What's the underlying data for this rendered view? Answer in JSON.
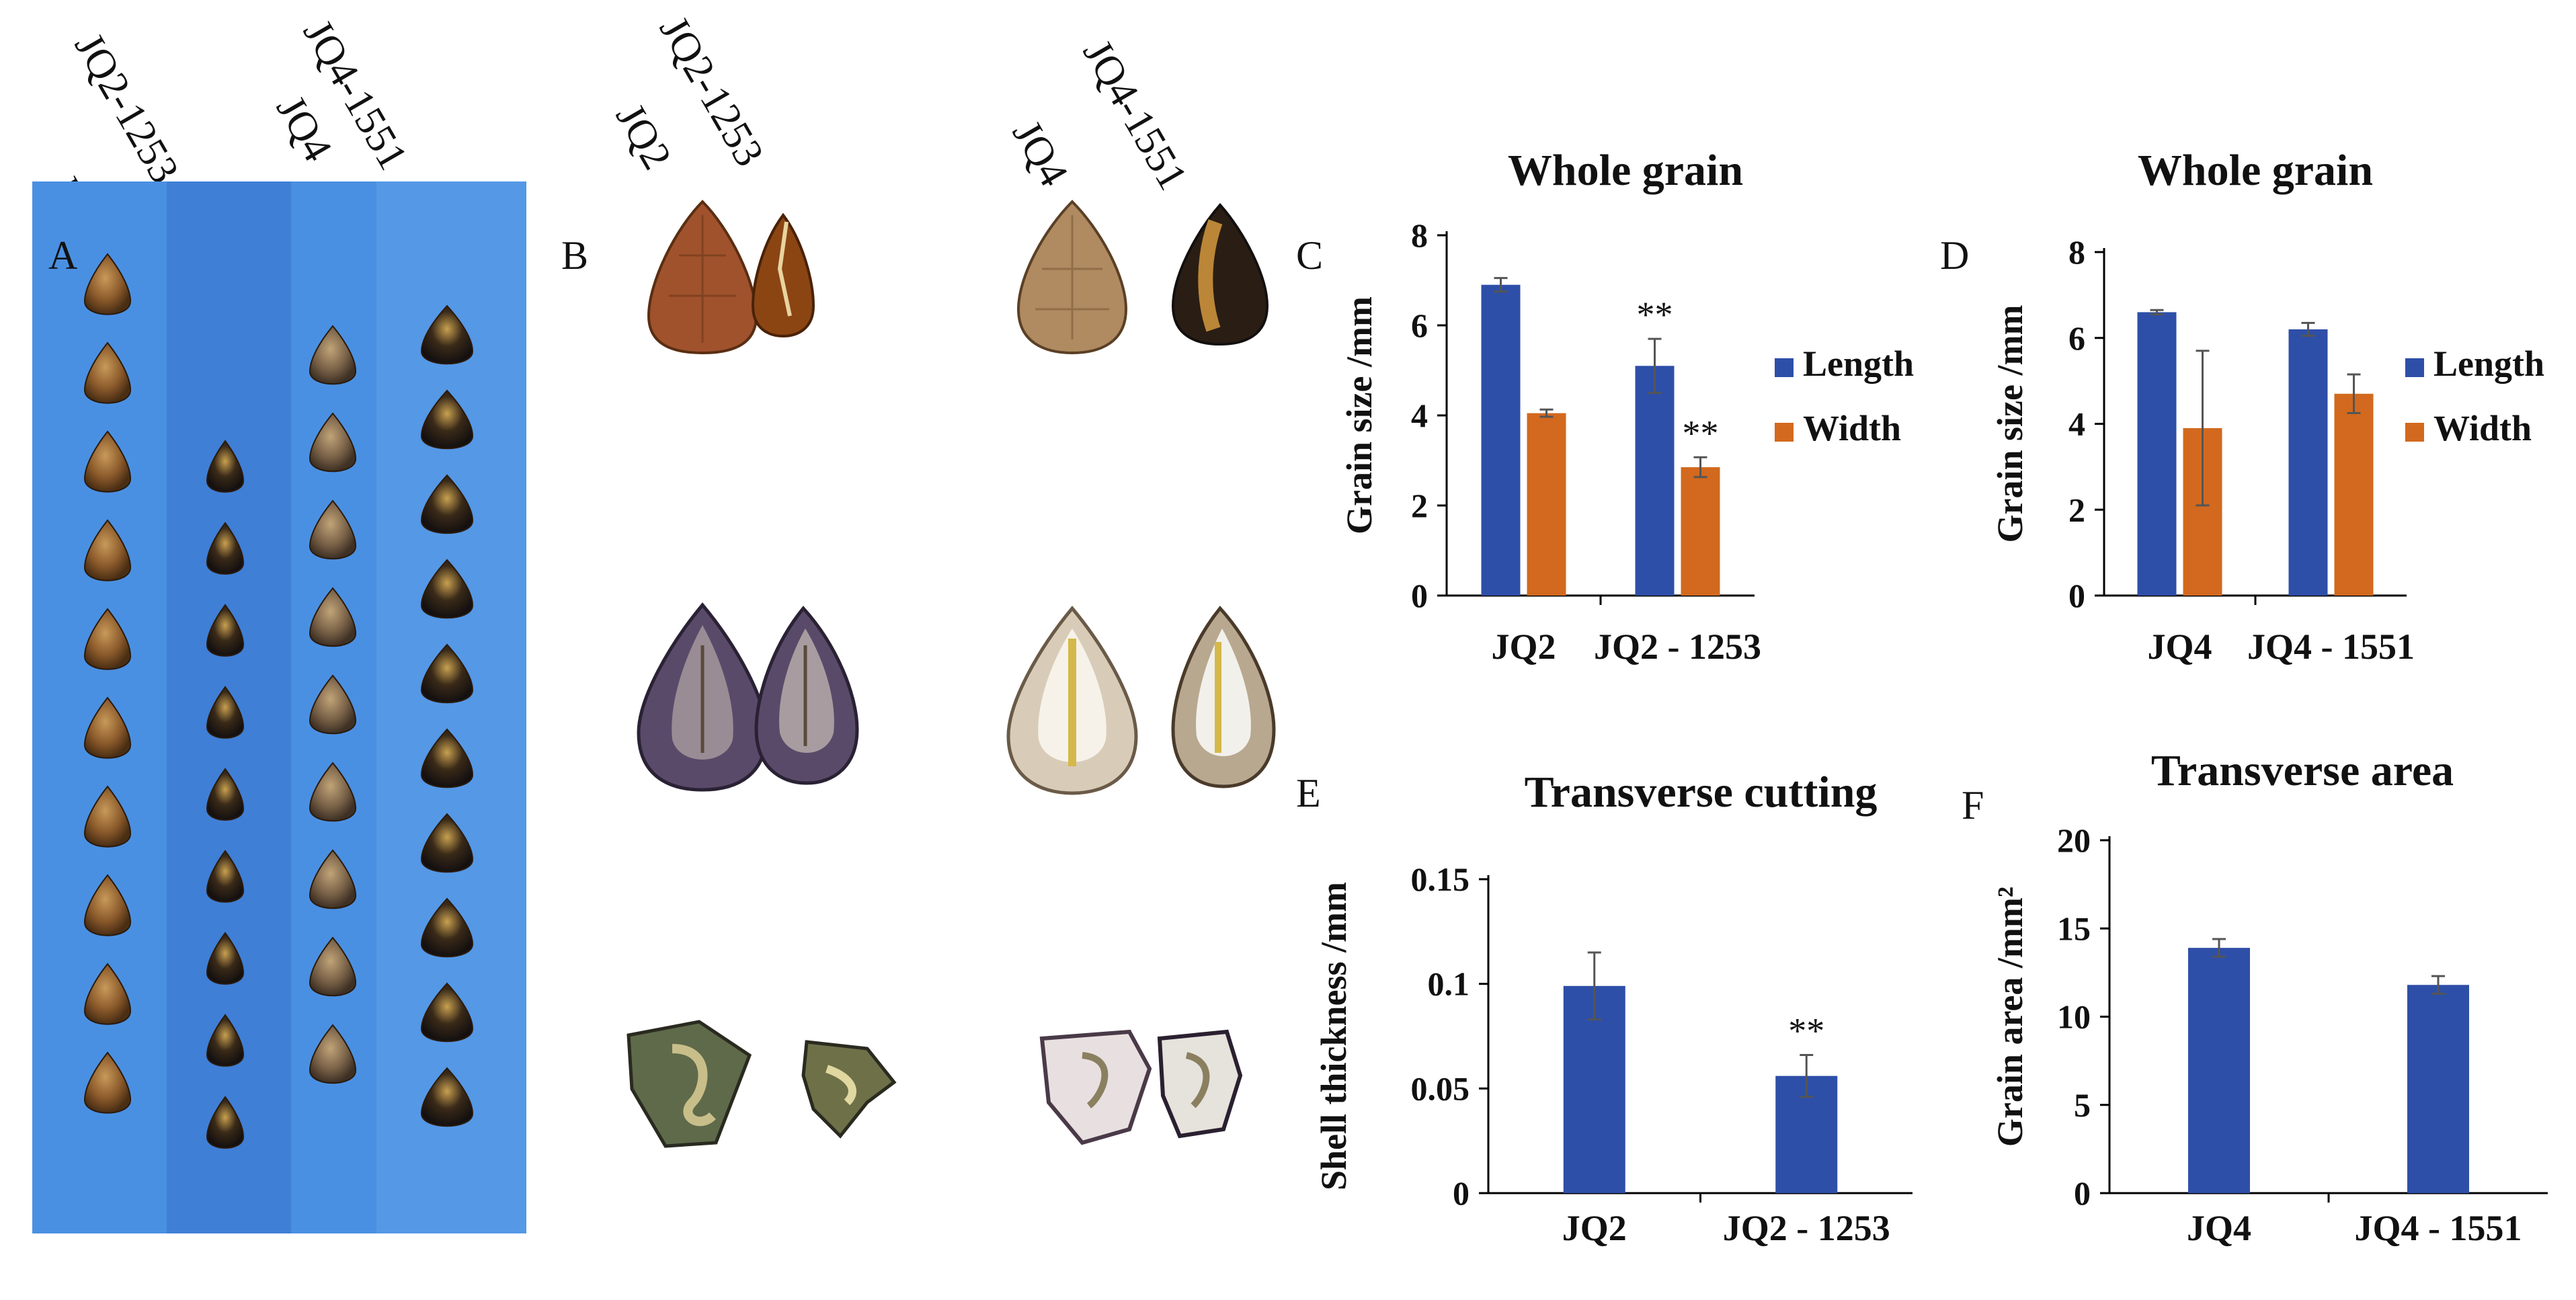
{
  "colors": {
    "length": "#2E4FA8",
    "width": "#D2691E",
    "photo_bg": "#4A90E2"
  },
  "panels": {
    "A": {
      "letter": "A",
      "columns": [
        "JQ2",
        "JQ2-1253",
        "JQ4",
        "JQ4-1551"
      ]
    },
    "B": {
      "letter": "B",
      "columns": [
        "JQ2",
        "JQ2-1253",
        "JQ4",
        "JQ4-1551"
      ]
    }
  },
  "chart_data": [
    {
      "id": "C",
      "letter": "C",
      "type": "bar",
      "title": "Whole grain",
      "ylabel": "Grain size /mm",
      "ylim": [
        0,
        8
      ],
      "yticks": [
        "0",
        "2",
        "4",
        "6",
        "8"
      ],
      "categories": [
        "JQ2",
        "JQ2 - 1253"
      ],
      "series": [
        {
          "name": "Length",
          "values": [
            6.9,
            5.1
          ],
          "errors": [
            0.15,
            0.6
          ],
          "sig": [
            "",
            "**"
          ]
        },
        {
          "name": "Width",
          "values": [
            4.05,
            2.85
          ],
          "errors": [
            0.08,
            0.22
          ],
          "sig": [
            "",
            "**"
          ]
        }
      ],
      "legend": "right"
    },
    {
      "id": "D",
      "letter": "D",
      "type": "bar",
      "title": "Whole grain",
      "ylabel": "Grain size /mm",
      "ylim": [
        0,
        8
      ],
      "yticks": [
        "0",
        "2",
        "4",
        "6",
        "8"
      ],
      "categories": [
        "JQ4",
        "JQ4 - 1551"
      ],
      "series": [
        {
          "name": "Length",
          "values": [
            6.6,
            6.2
          ],
          "errors": [
            0.05,
            0.15
          ],
          "sig": [
            "",
            ""
          ]
        },
        {
          "name": "Width",
          "values": [
            3.9,
            4.7
          ],
          "errors": [
            1.8,
            0.45
          ],
          "sig": [
            "",
            ""
          ]
        }
      ],
      "legend": "right"
    },
    {
      "id": "E",
      "letter": "E",
      "type": "bar",
      "title": "Transverse cutting",
      "ylabel": "Shell thickness /mm",
      "ylim": [
        0,
        0.15
      ],
      "yticks": [
        "0",
        "0.05",
        "0.1",
        "0.15"
      ],
      "categories": [
        "JQ2",
        "JQ2 - 1253"
      ],
      "series": [
        {
          "name": "Thickness",
          "values": [
            0.099,
            0.056
          ],
          "errors": [
            0.016,
            0.01
          ],
          "sig": [
            "",
            "**"
          ]
        }
      ]
    },
    {
      "id": "F",
      "letter": "F",
      "type": "bar",
      "title": "Transverse area",
      "ylabel": "Grain area /mm²",
      "ylim": [
        0,
        20
      ],
      "yticks": [
        "0",
        "5",
        "10",
        "15",
        "20"
      ],
      "categories": [
        "JQ4",
        "JQ4 - 1551"
      ],
      "series": [
        {
          "name": "Area",
          "values": [
            13.9,
            11.8
          ],
          "errors": [
            0.5,
            0.5
          ],
          "sig": [
            "",
            ""
          ]
        }
      ]
    }
  ]
}
